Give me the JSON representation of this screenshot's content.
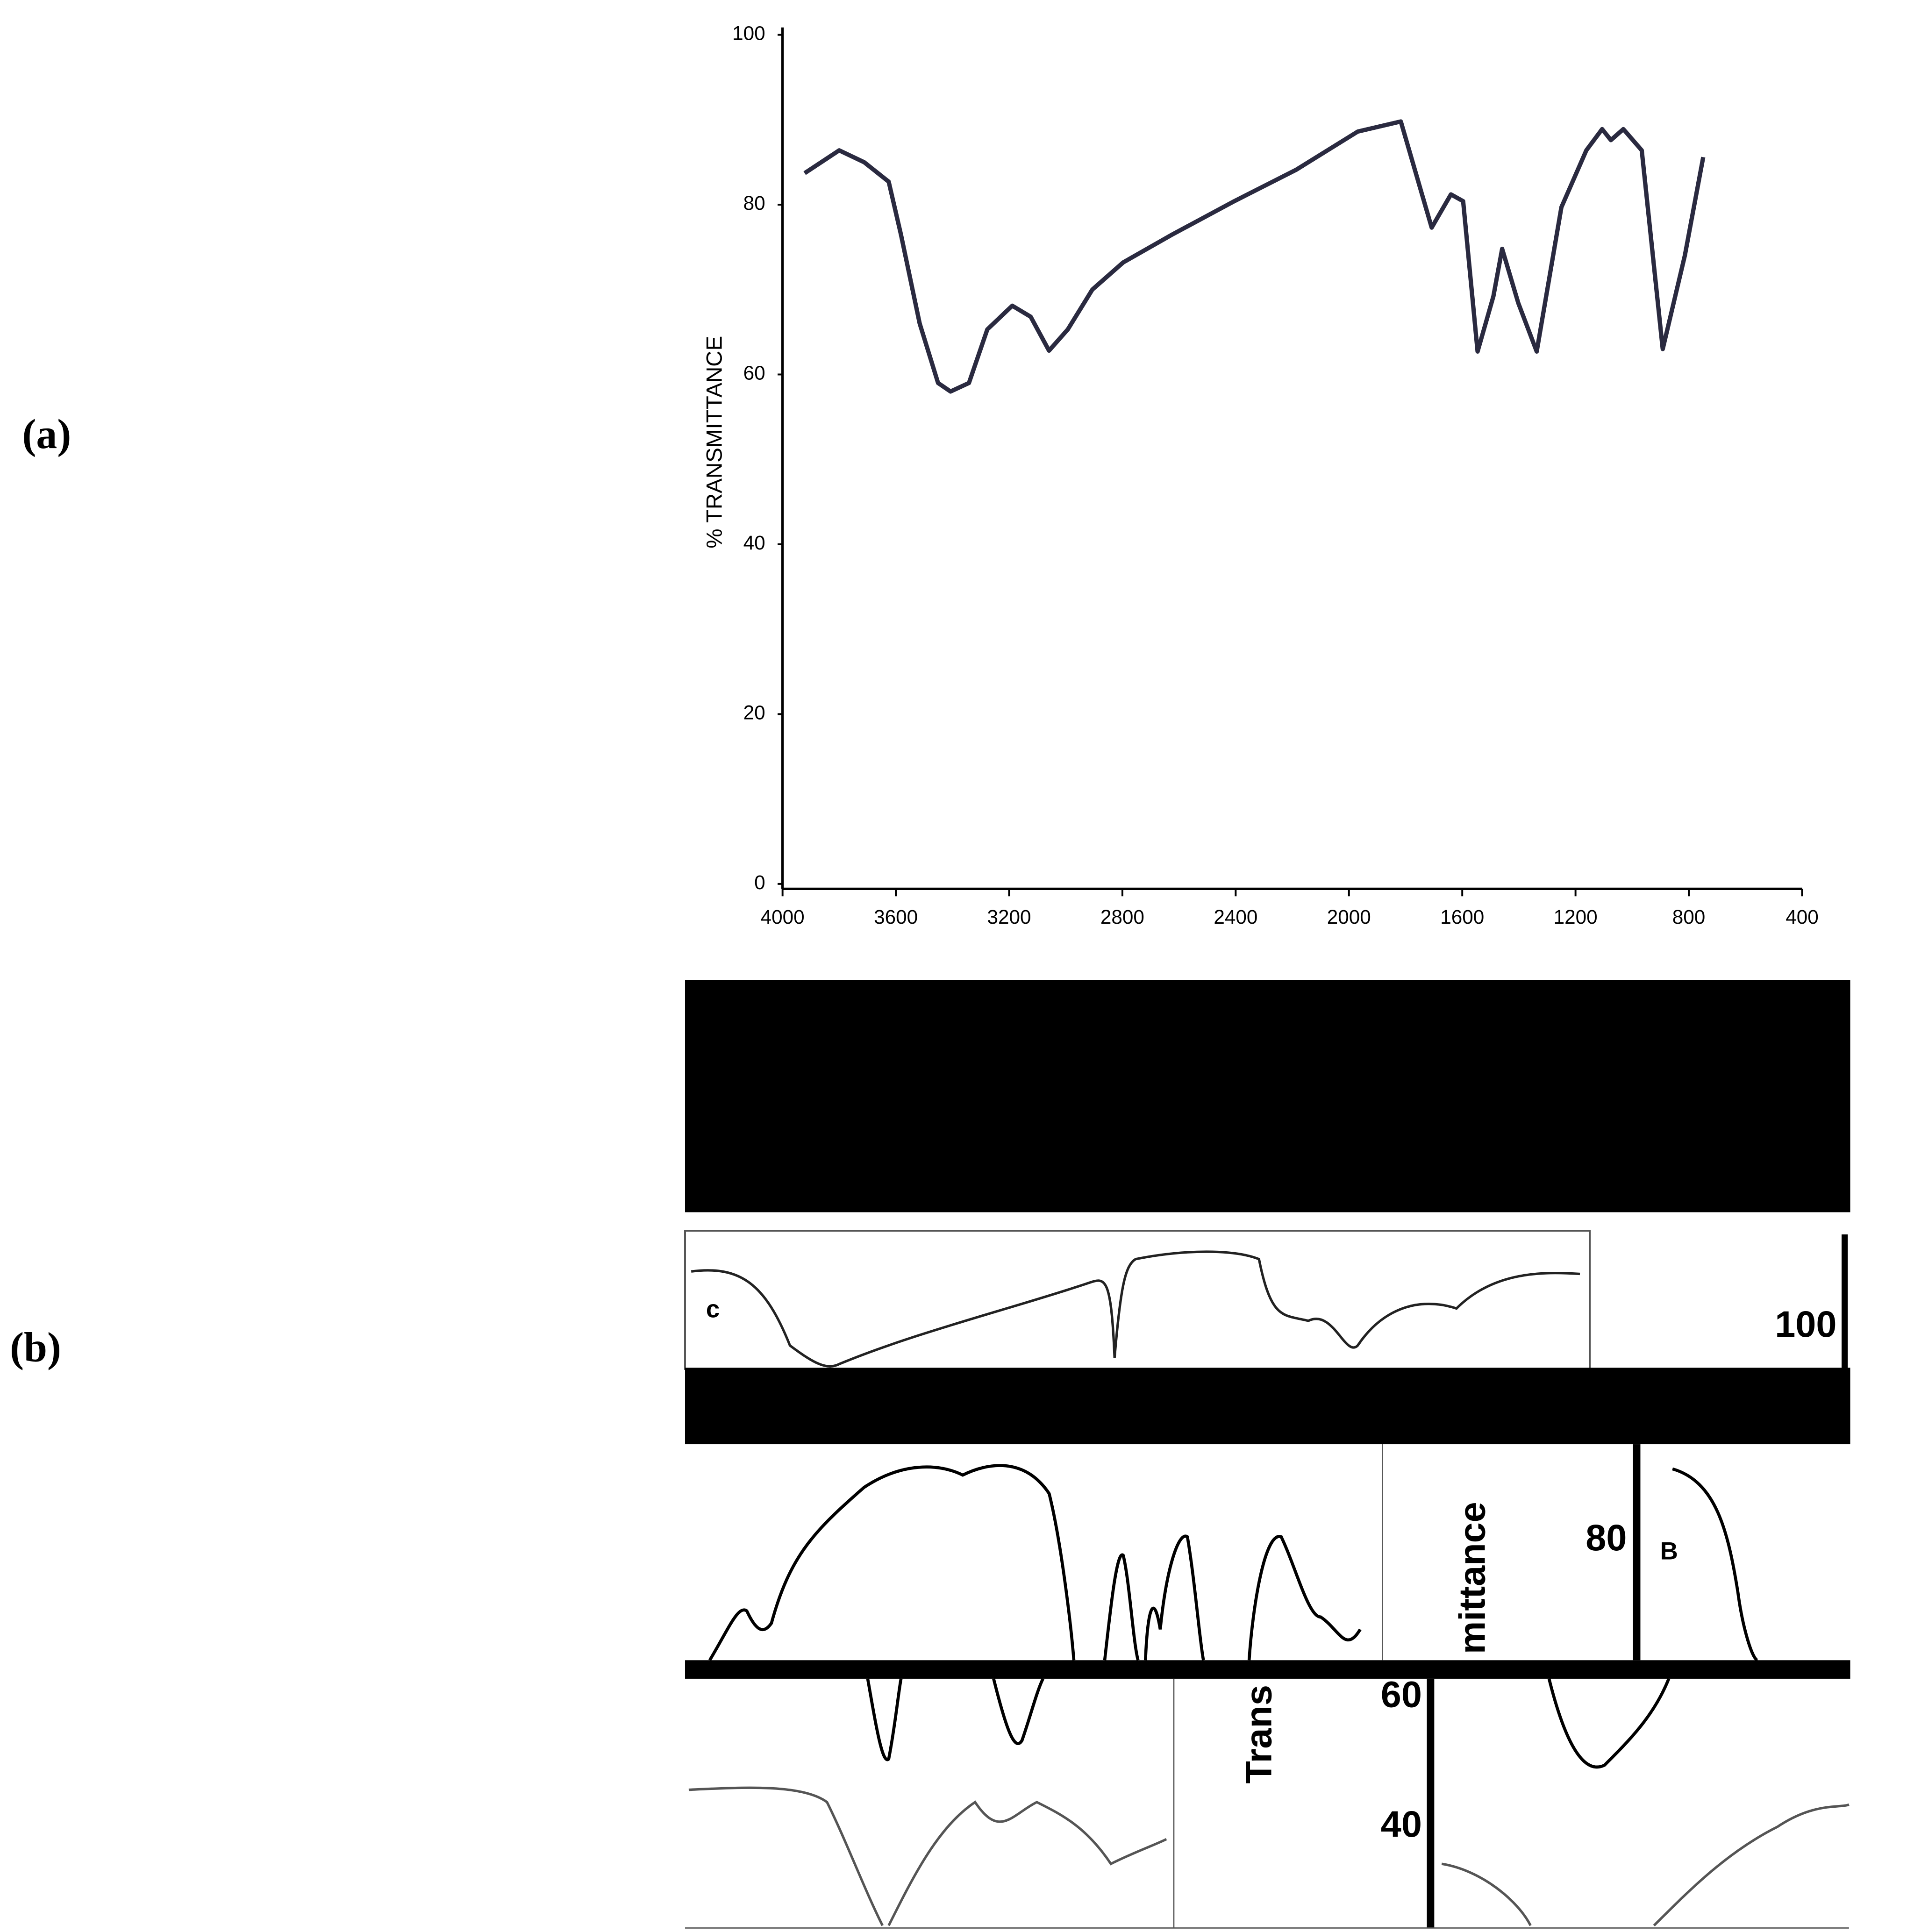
{
  "figure": {
    "panel_labels": [
      "(a)",
      "(b)"
    ],
    "fragments": [
      "c",
      "100",
      "80",
      "B",
      "mittance",
      "Trans",
      "60",
      "40"
    ]
  },
  "chart_data": {
    "type": "line",
    "ylabel": "% TRANSMITTANCE",
    "x": [
      3922,
      3800,
      3712,
      3625,
      3582,
      3516,
      3451,
      3407,
      3342,
      3277,
      3189,
      3124,
      3059,
      2993,
      2906,
      2797,
      2623,
      2405,
      2187,
      1969,
      1817,
      1708,
      1640,
      1597,
      1546,
      1490,
      1459,
      1402,
      1337,
      1250,
      1162,
      1106,
      1075,
      1031,
      966,
      892,
      814,
      749
    ],
    "series": [
      {
        "color": "#2a2a40",
        "values": [
          83.7,
          86.4,
          85,
          82.7,
          76.5,
          66,
          59,
          58,
          59,
          65.3,
          68.1,
          66.8,
          62.8,
          65.3,
          70,
          73.2,
          76.5,
          80.4,
          84.1,
          88.6,
          89.8,
          77.3,
          81.2,
          80.4,
          62.7,
          69.2,
          74.8,
          68.4,
          62.7,
          79.7,
          86.4,
          88.9,
          87.6,
          88.9,
          86.4,
          63,
          74,
          85.6
        ]
      }
    ],
    "xlim": [
      4000,
      400
    ],
    "xticks": [
      4000,
      3600,
      3200,
      2800,
      2400,
      2000,
      1600,
      1200,
      800,
      400
    ],
    "ylim": [
      0,
      100
    ],
    "yticks": [
      0,
      20,
      40,
      60,
      80,
      100
    ]
  }
}
